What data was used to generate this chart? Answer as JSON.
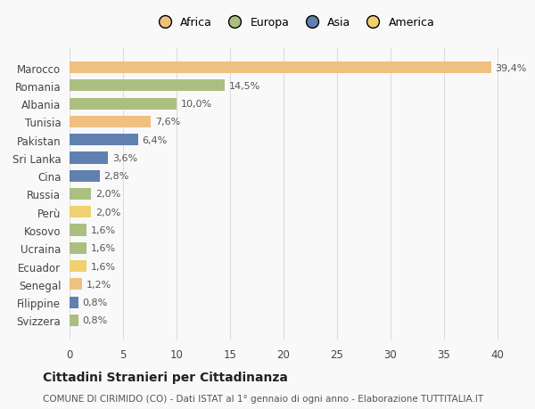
{
  "categories": [
    "Svizzera",
    "Filippine",
    "Senegal",
    "Ecuador",
    "Ucraina",
    "Kosovo",
    "Perù",
    "Russia",
    "Cina",
    "Sri Lanka",
    "Pakistan",
    "Tunisia",
    "Albania",
    "Romania",
    "Marocco"
  ],
  "values": [
    0.8,
    0.8,
    1.2,
    1.6,
    1.6,
    1.6,
    2.0,
    2.0,
    2.8,
    3.6,
    6.4,
    7.6,
    10.0,
    14.5,
    39.4
  ],
  "labels": [
    "0,8%",
    "0,8%",
    "1,2%",
    "1,6%",
    "1,6%",
    "1,6%",
    "2,0%",
    "2,0%",
    "2,8%",
    "3,6%",
    "6,4%",
    "7,6%",
    "10,0%",
    "14,5%",
    "39,4%"
  ],
  "continents": [
    "Europa",
    "Asia",
    "Africa",
    "America",
    "Europa",
    "Europa",
    "America",
    "Europa",
    "Asia",
    "Asia",
    "Asia",
    "Africa",
    "Europa",
    "Europa",
    "Africa"
  ],
  "colors": {
    "Africa": "#F0C080",
    "Europa": "#AABF80",
    "Asia": "#6080B0",
    "America": "#F0D070"
  },
  "xlim": [
    0,
    42
  ],
  "xticks": [
    0,
    5,
    10,
    15,
    20,
    25,
    30,
    35,
    40
  ],
  "title": "Cittadini Stranieri per Cittadinanza",
  "subtitle": "COMUNE DI CIRIMIDO (CO) - Dati ISTAT al 1° gennaio di ogni anno - Elaborazione TUTTITALIA.IT",
  "background_color": "#f9f9f9",
  "grid_color": "#dddddd",
  "legend_order": [
    "Africa",
    "Europa",
    "Asia",
    "America"
  ]
}
